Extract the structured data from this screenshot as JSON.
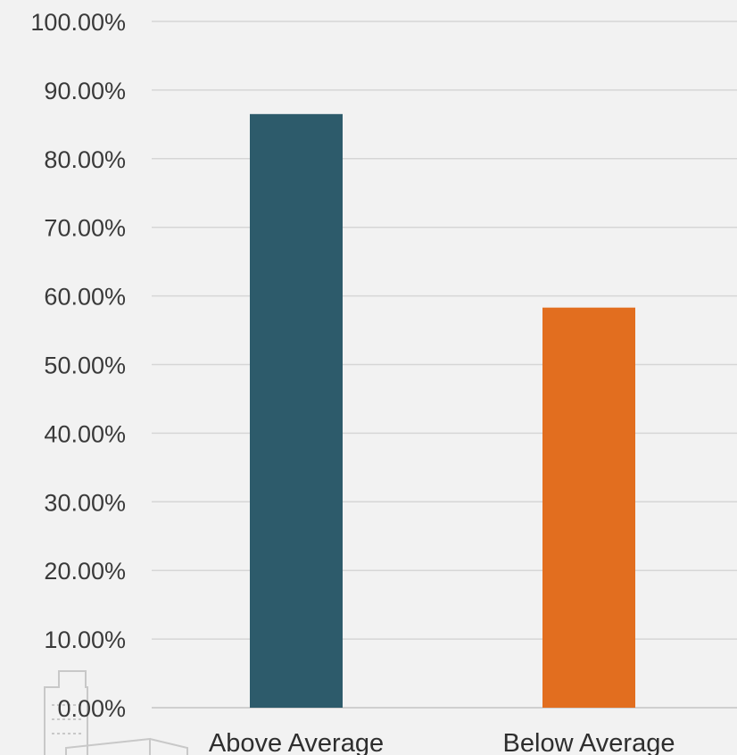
{
  "chart_data": {
    "type": "bar",
    "title": "",
    "xlabel": "",
    "ylabel": "",
    "categories": [
      "Above Average",
      "Below Average"
    ],
    "values": [
      86.5,
      58.3
    ],
    "bar_colors": [
      "#2d5b6b",
      "#e26e1f"
    ],
    "ylim": [
      0,
      100
    ],
    "yticks": [
      0,
      10,
      20,
      30,
      40,
      50,
      60,
      70,
      80,
      90,
      100
    ],
    "ytick_labels": [
      "0.00%",
      "10.00%",
      "20.00%",
      "30.00%",
      "40.00%",
      "50.00%",
      "60.00%",
      "70.00%",
      "80.00%",
      "90.00%",
      "100.00%"
    ],
    "grid": true,
    "legend": "none"
  },
  "colors": {
    "background": "#f2f2f2",
    "gridline": "#d6d6d6",
    "text": "#3a3a3a"
  },
  "watermark_icon": "building-icon"
}
